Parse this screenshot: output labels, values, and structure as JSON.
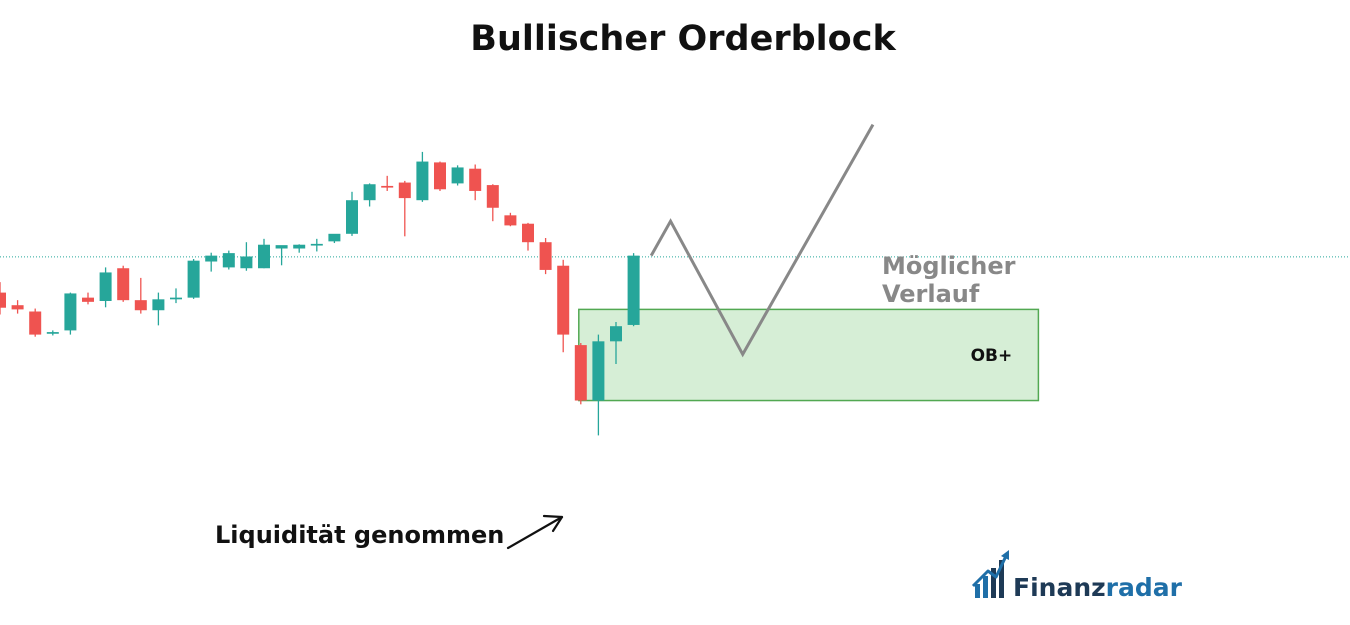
{
  "chart_data": {
    "type": "candlestick",
    "title": "Bullischer Orderblock",
    "colors": {
      "up": "#26a69a",
      "down": "#ef5350",
      "zone_fill": "#d6eed6",
      "zone_stroke": "#52a852",
      "projection": "#888888",
      "level_line": "#26a69a"
    },
    "y_domain": [
      0,
      100
    ],
    "candles": [
      {
        "o": 62.0,
        "h": 64.5,
        "l": 56.8,
        "c": 58.4
      },
      {
        "o": 59.0,
        "h": 60.2,
        "l": 57.0,
        "c": 58.0
      },
      {
        "o": 57.5,
        "h": 58.2,
        "l": 51.5,
        "c": 52.0
      },
      {
        "o": 52.2,
        "h": 53.0,
        "l": 51.8,
        "c": 52.6
      },
      {
        "o": 53.0,
        "h": 62.0,
        "l": 52.0,
        "c": 61.8
      },
      {
        "o": 60.8,
        "h": 62.0,
        "l": 59.2,
        "c": 59.8
      },
      {
        "o": 60.0,
        "h": 68.0,
        "l": 58.5,
        "c": 66.8
      },
      {
        "o": 67.8,
        "h": 68.4,
        "l": 59.8,
        "c": 60.2
      },
      {
        "o": 60.2,
        "h": 65.5,
        "l": 57.0,
        "c": 57.8
      },
      {
        "o": 57.8,
        "h": 62.0,
        "l": 54.2,
        "c": 60.4
      },
      {
        "o": 60.4,
        "h": 63.0,
        "l": 59.5,
        "c": 60.8
      },
      {
        "o": 60.8,
        "h": 70.0,
        "l": 60.5,
        "c": 69.6
      },
      {
        "o": 69.4,
        "h": 71.5,
        "l": 67.0,
        "c": 70.8
      },
      {
        "o": 68.0,
        "h": 72.0,
        "l": 67.5,
        "c": 71.4
      },
      {
        "o": 67.8,
        "h": 74.0,
        "l": 67.2,
        "c": 70.6
      },
      {
        "o": 67.8,
        "h": 74.8,
        "l": 67.8,
        "c": 73.4
      },
      {
        "o": 72.5,
        "h": 73.2,
        "l": 68.5,
        "c": 73.3
      },
      {
        "o": 72.5,
        "h": 73.5,
        "l": 71.5,
        "c": 73.4
      },
      {
        "o": 73.2,
        "h": 74.8,
        "l": 71.8,
        "c": 73.6
      },
      {
        "o": 74.2,
        "h": 75.6,
        "l": 73.8,
        "c": 76.0
      },
      {
        "o": 76.0,
        "h": 86.0,
        "l": 75.5,
        "c": 84.0
      },
      {
        "o": 84.0,
        "h": 88.0,
        "l": 82.5,
        "c": 87.8
      },
      {
        "o": 87.4,
        "h": 89.8,
        "l": 86.2,
        "c": 87.0
      },
      {
        "o": 88.2,
        "h": 88.6,
        "l": 75.4,
        "c": 84.5
      },
      {
        "o": 84.0,
        "h": 95.5,
        "l": 83.6,
        "c": 93.2
      },
      {
        "o": 93.0,
        "h": 93.2,
        "l": 86.2,
        "c": 86.6
      },
      {
        "o": 88.0,
        "h": 92.3,
        "l": 87.5,
        "c": 91.8
      },
      {
        "o": 91.5,
        "h": 92.5,
        "l": 84.0,
        "c": 86.2
      },
      {
        "o": 87.6,
        "h": 87.8,
        "l": 79.0,
        "c": 82.2
      },
      {
        "o": 80.4,
        "h": 81.0,
        "l": 77.8,
        "c": 78.0
      },
      {
        "o": 78.4,
        "h": 78.6,
        "l": 72.0,
        "c": 74.0
      },
      {
        "o": 74.0,
        "h": 75.0,
        "l": 66.4,
        "c": 67.4
      },
      {
        "o": 68.4,
        "h": 69.8,
        "l": 47.8,
        "c": 52.0
      },
      {
        "o": 49.5,
        "h": 50.0,
        "l": 35.4,
        "c": 36.3
      },
      {
        "o": 36.3,
        "h": 52.0,
        "l": 28.0,
        "c": 50.4
      },
      {
        "o": 50.4,
        "h": 55.0,
        "l": 45.0,
        "c": 54.0
      },
      {
        "o": 54.3,
        "h": 71.4,
        "l": 54.0,
        "c": 70.8
      }
    ],
    "order_block": {
      "label": "OB+",
      "x_start_index": 33,
      "x_end_index": 59,
      "y_low": 36.3,
      "y_high": 58.0
    },
    "level_line_value": 70.5,
    "projection": {
      "label": [
        "Möglicher",
        "Verlauf"
      ],
      "points": [
        [
          37,
          70.8
        ],
        [
          38.1,
          79.0
        ],
        [
          42.2,
          47.3
        ],
        [
          49.6,
          102.0
        ]
      ]
    },
    "annotations": [
      {
        "text": "Liquidität genommen",
        "points_to_index": 33,
        "points_to_value": 31.0
      }
    ]
  },
  "brand": {
    "name_part1": "Finanz",
    "name_part2": "radar",
    "icon": "bar-chart-arrow-icon"
  }
}
